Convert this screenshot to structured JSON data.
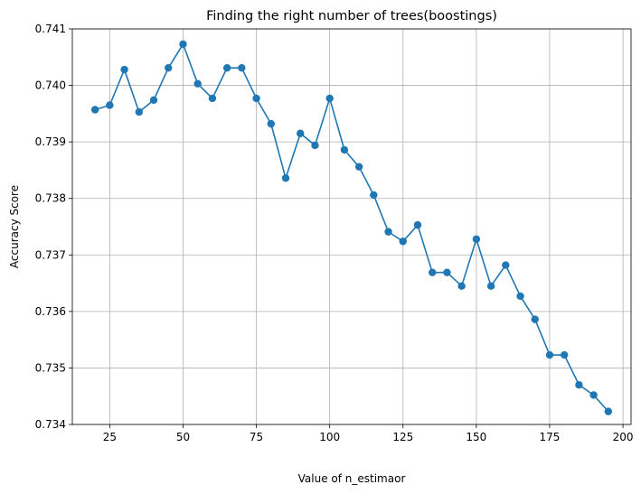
{
  "chart_data": {
    "type": "line",
    "title": "Finding the right number of trees(boostings)",
    "xlabel": "Value of n_estimaor",
    "ylabel": "Accuracy Score",
    "xlim": [
      12.25,
      202.75
    ],
    "ylim": [
      0.734,
      0.741
    ],
    "xticks": [
      25,
      50,
      75,
      100,
      125,
      150,
      175,
      200
    ],
    "yticks": [
      0.734,
      0.735,
      0.736,
      0.737,
      0.738,
      0.739,
      0.74,
      0.741
    ],
    "grid": true,
    "marker": "circle",
    "color": "#1f77b4",
    "series": [
      {
        "x": [
          20,
          25,
          30,
          35,
          40,
          45,
          50,
          55,
          60,
          65,
          70,
          75,
          80,
          85,
          90,
          95,
          100,
          105,
          110,
          115,
          120,
          125,
          130,
          135,
          140,
          145,
          150,
          155,
          160,
          165,
          170,
          175,
          180,
          185,
          190,
          195
        ],
        "y": [
          0.73957,
          0.73965,
          0.74028,
          0.73953,
          0.73974,
          0.74031,
          0.74073,
          0.74003,
          0.73977,
          0.74031,
          0.74031,
          0.73977,
          0.73932,
          0.73836,
          0.73915,
          0.73894,
          0.73977,
          0.73886,
          0.73856,
          0.73806,
          0.73741,
          0.73724,
          0.73753,
          0.73669,
          0.73669,
          0.73645,
          0.73728,
          0.73645,
          0.73682,
          0.73627,
          0.73586,
          0.73523,
          0.73523,
          0.7347,
          0.73452,
          0.73423
        ]
      }
    ]
  }
}
